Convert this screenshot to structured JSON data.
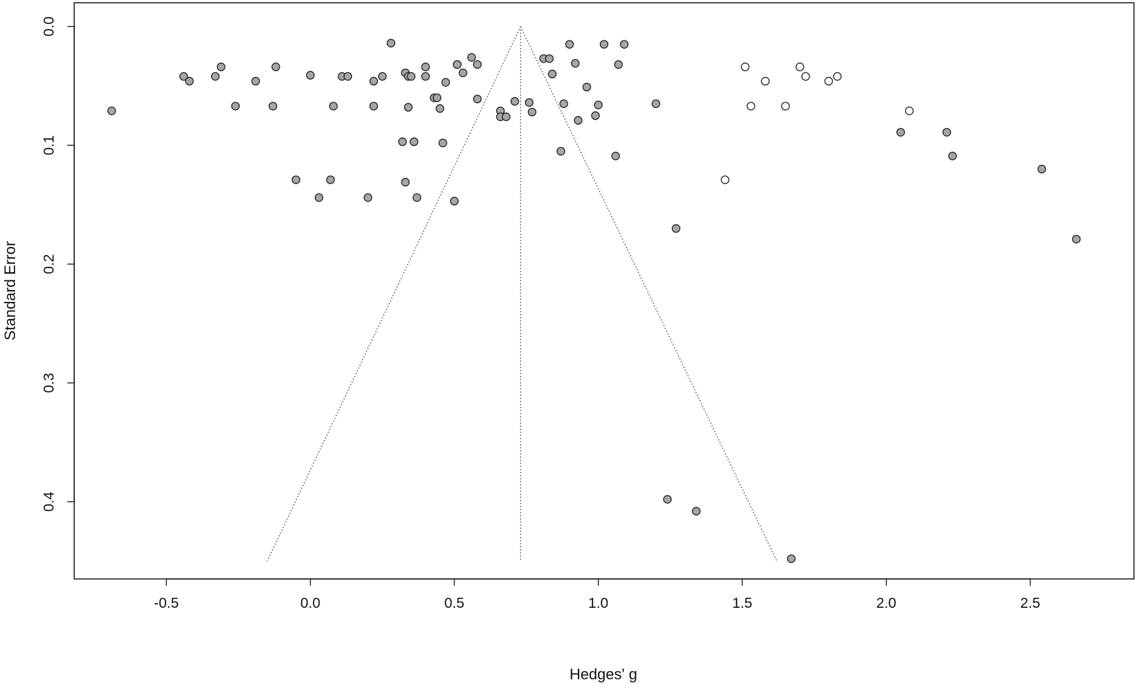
{
  "chart_data": {
    "type": "scatter",
    "title": "",
    "xlabel": "Hedges' g",
    "ylabel": "Standard Error",
    "xlim": [
      -0.82,
      2.86
    ],
    "ylim": [
      0.465,
      -0.02
    ],
    "y_inverted": true,
    "xticks": [
      -0.5,
      0.0,
      0.5,
      1.0,
      1.5,
      2.0,
      2.5
    ],
    "xtick_labels": [
      "-0.5",
      "0.0",
      "0.5",
      "1.0",
      "1.5",
      "2.0",
      "2.5"
    ],
    "yticks": [
      0.0,
      0.1,
      0.2,
      0.3,
      0.4
    ],
    "ytick_labels": [
      "0.0",
      "0.1",
      "0.2",
      "0.3",
      "0.4"
    ],
    "grid": false,
    "colors": {
      "observed": "#a6a6a6",
      "imputed": "#ffffff",
      "stroke": "#222222"
    },
    "funnel": {
      "center": 0.73,
      "apex_se": 0.0,
      "bottom_se": 0.45,
      "left_bottom_x": -0.15,
      "right_bottom_x": 1.62,
      "style": "dotted"
    },
    "series": [
      {
        "fill": "grey",
        "x": [
          -0.69,
          -0.44,
          -0.42,
          -0.33,
          -0.31,
          -0.26,
          -0.19,
          -0.13,
          -0.12,
          0.0,
          0.08,
          0.11,
          0.13,
          0.22,
          0.22,
          0.25,
          0.28,
          0.33,
          0.34,
          0.34,
          0.35,
          0.4,
          0.4,
          0.43,
          0.44,
          0.45,
          0.47,
          0.51,
          0.51,
          0.53,
          0.56,
          0.58,
          0.58,
          0.66,
          0.66,
          0.68,
          0.71,
          0.76,
          0.77,
          0.81,
          0.83,
          0.84,
          0.88,
          0.9,
          0.92,
          0.93,
          0.96,
          0.99,
          1.0,
          1.02,
          1.07,
          1.09,
          1.2,
          0.32,
          0.36,
          0.46,
          0.87,
          1.06,
          -0.05,
          0.07,
          0.33,
          0.03,
          0.2,
          0.37,
          0.5,
          1.27,
          1.24,
          1.34,
          2.05,
          2.21,
          2.23,
          2.54,
          2.66,
          1.67
        ],
        "y": [
          0.071,
          0.042,
          0.046,
          0.042,
          0.034,
          0.067,
          0.046,
          0.067,
          0.034,
          0.041,
          0.067,
          0.042,
          0.042,
          0.067,
          0.046,
          0.042,
          0.014,
          0.039,
          0.042,
          0.068,
          0.042,
          0.042,
          0.034,
          0.06,
          0.06,
          0.069,
          0.047,
          0.032,
          0.032,
          0.039,
          0.026,
          0.032,
          0.061,
          0.071,
          0.076,
          0.076,
          0.063,
          0.064,
          0.072,
          0.027,
          0.027,
          0.04,
          0.065,
          0.015,
          0.031,
          0.079,
          0.051,
          0.075,
          0.066,
          0.015,
          0.032,
          0.015,
          0.065,
          0.097,
          0.097,
          0.098,
          0.105,
          0.109,
          0.129,
          0.129,
          0.131,
          0.144,
          0.144,
          0.144,
          0.147,
          0.17,
          0.398,
          0.408,
          0.089,
          0.089,
          0.109,
          0.12,
          0.179,
          0.448
        ]
      },
      {
        "fill": "white",
        "x": [
          1.51,
          1.53,
          1.58,
          1.65,
          1.7,
          1.72,
          1.8,
          1.83,
          2.08,
          1.44
        ],
        "y": [
          0.034,
          0.067,
          0.046,
          0.067,
          0.034,
          0.042,
          0.046,
          0.042,
          0.071,
          0.129
        ]
      }
    ]
  }
}
